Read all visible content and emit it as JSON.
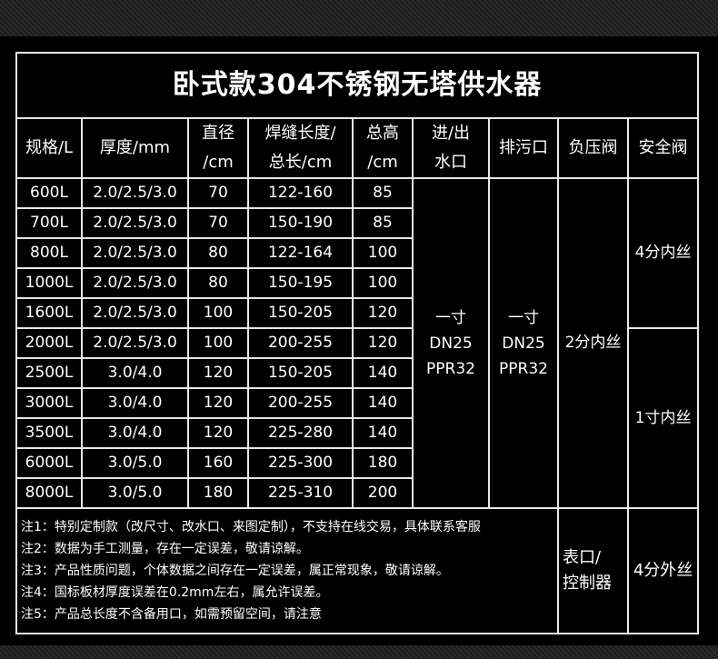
{
  "title": "卧式款304不锈钢无塔供水器",
  "headers": [
    "规格/L",
    "厚度/mm",
    "直径\n/cm",
    "焊缝长度/\n总长/cm",
    "总高\n/cm",
    "进/出\n水口",
    "排污口",
    "负压阀",
    "安全阀"
  ],
  "rows": [
    [
      "600L",
      "2.0/2.5/3.0",
      "70",
      "122-160",
      "85"
    ],
    [
      "700L",
      "2.0/2.5/3.0",
      "70",
      "150-190",
      "85"
    ],
    [
      "800L",
      "2.0/2.5/3.0",
      "80",
      "122-164",
      "100"
    ],
    [
      "1000L",
      "2.0/2.5/3.0",
      "80",
      "150-195",
      "100"
    ],
    [
      "1600L",
      "2.0/2.5/3.0",
      "100",
      "150-205",
      "120"
    ],
    [
      "2000L",
      "2.0/2.5/3.0",
      "100",
      "200-255",
      "120"
    ],
    [
      "2500L",
      "3.0/4.0",
      "120",
      "150-205",
      "140"
    ],
    [
      "3000L",
      "3.0/4.0",
      "120",
      "200-255",
      "140"
    ],
    [
      "3500L",
      "3.0/4.0",
      "120",
      "225-280",
      "140"
    ],
    [
      "6000L",
      "3.0/5.0",
      "160",
      "225-300",
      "180"
    ],
    [
      "8000L",
      "3.0/5.0",
      "180",
      "225-310",
      "200"
    ]
  ],
  "inlet": [
    "一寸",
    "DN25",
    "PPR32"
  ],
  "drain": [
    "一寸",
    "DN25",
    "PPR32"
  ],
  "vacuum_valve": "2分内丝",
  "safety_valve_small": "4分内丝",
  "safety_valve_large": "1寸内丝",
  "notes": [
    "注1：特别定制款（改尺寸、改水口、来图定制），不支持在线交易，具体联系客服",
    "注2：数据为手工测量，存在一定误差，敬请谅解。",
    "注3：产品性质问题，个体数据之间存在一定误差，属正常现象，敬请谅解。",
    "注4：国标板材厚度误差在0.2mm左右，属允许误差。",
    "注5：产品总长度不含备用口，如需预留空间，请注意"
  ],
  "meter_port": [
    "表口/",
    "控制器"
  ],
  "meter_valve": "4分外丝"
}
